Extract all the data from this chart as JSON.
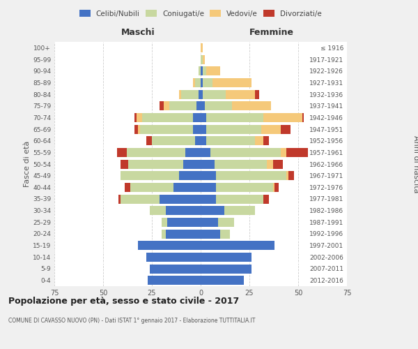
{
  "age_groups": [
    "0-4",
    "5-9",
    "10-14",
    "15-19",
    "20-24",
    "25-29",
    "30-34",
    "35-39",
    "40-44",
    "45-49",
    "50-54",
    "55-59",
    "60-64",
    "65-69",
    "70-74",
    "75-79",
    "80-84",
    "85-89",
    "90-94",
    "95-99",
    "100+"
  ],
  "birth_years": [
    "2012-2016",
    "2007-2011",
    "2002-2006",
    "1997-2001",
    "1992-1996",
    "1987-1991",
    "1982-1986",
    "1977-1981",
    "1972-1976",
    "1967-1971",
    "1962-1966",
    "1957-1961",
    "1952-1956",
    "1947-1951",
    "1942-1946",
    "1937-1941",
    "1932-1936",
    "1927-1931",
    "1922-1926",
    "1917-1921",
    "≤ 1916"
  ],
  "colors": {
    "celibi": "#4472C4",
    "coniugati": "#c8d8a0",
    "vedovi": "#f5c97a",
    "divorziati": "#c0392b"
  },
  "maschi": {
    "celibi": [
      27,
      26,
      28,
      32,
      18,
      17,
      18,
      21,
      14,
      11,
      9,
      8,
      3,
      4,
      4,
      2,
      1,
      0,
      0,
      0,
      0
    ],
    "coniugati": [
      0,
      0,
      0,
      0,
      2,
      3,
      8,
      20,
      22,
      30,
      28,
      30,
      22,
      27,
      26,
      14,
      9,
      3,
      1,
      0,
      0
    ],
    "vedovi": [
      0,
      0,
      0,
      0,
      0,
      0,
      0,
      0,
      0,
      0,
      0,
      0,
      0,
      1,
      3,
      3,
      1,
      1,
      0,
      0,
      0
    ],
    "divorziati": [
      0,
      0,
      0,
      0,
      0,
      0,
      0,
      1,
      3,
      0,
      4,
      5,
      3,
      2,
      1,
      2,
      0,
      0,
      0,
      0,
      0
    ]
  },
  "femmine": {
    "celibi": [
      22,
      26,
      26,
      38,
      10,
      9,
      12,
      8,
      8,
      8,
      7,
      5,
      3,
      3,
      3,
      2,
      1,
      1,
      1,
      0,
      0
    ],
    "coniugati": [
      0,
      0,
      0,
      0,
      5,
      8,
      16,
      24,
      29,
      36,
      27,
      36,
      25,
      28,
      29,
      14,
      12,
      5,
      2,
      1,
      0
    ],
    "vedovi": [
      0,
      0,
      0,
      0,
      0,
      0,
      0,
      0,
      1,
      1,
      3,
      3,
      4,
      10,
      20,
      20,
      15,
      20,
      7,
      1,
      1
    ],
    "divorziati": [
      0,
      0,
      0,
      0,
      0,
      0,
      0,
      3,
      2,
      3,
      5,
      11,
      3,
      5,
      1,
      0,
      2,
      0,
      0,
      0,
      0
    ]
  },
  "xlim": 75,
  "title": "Popolazione per età, sesso e stato civile - 2017",
  "subtitle": "COMUNE DI CAVASSO NUOVO (PN) - Dati ISTAT 1° gennaio 2017 - Elaborazione TUTTITALIA.IT",
  "ylabel_left": "Fasce di età",
  "ylabel_right": "Anni di nascita",
  "xlabel_maschi": "Maschi",
  "xlabel_femmine": "Femmine",
  "legend_labels": [
    "Celibi/Nubili",
    "Coniugati/e",
    "Vedovi/e",
    "Divorziati/e"
  ],
  "bg_color": "#f0f0f0",
  "plot_bg_color": "#ffffff",
  "grid_color": "#cccccc"
}
